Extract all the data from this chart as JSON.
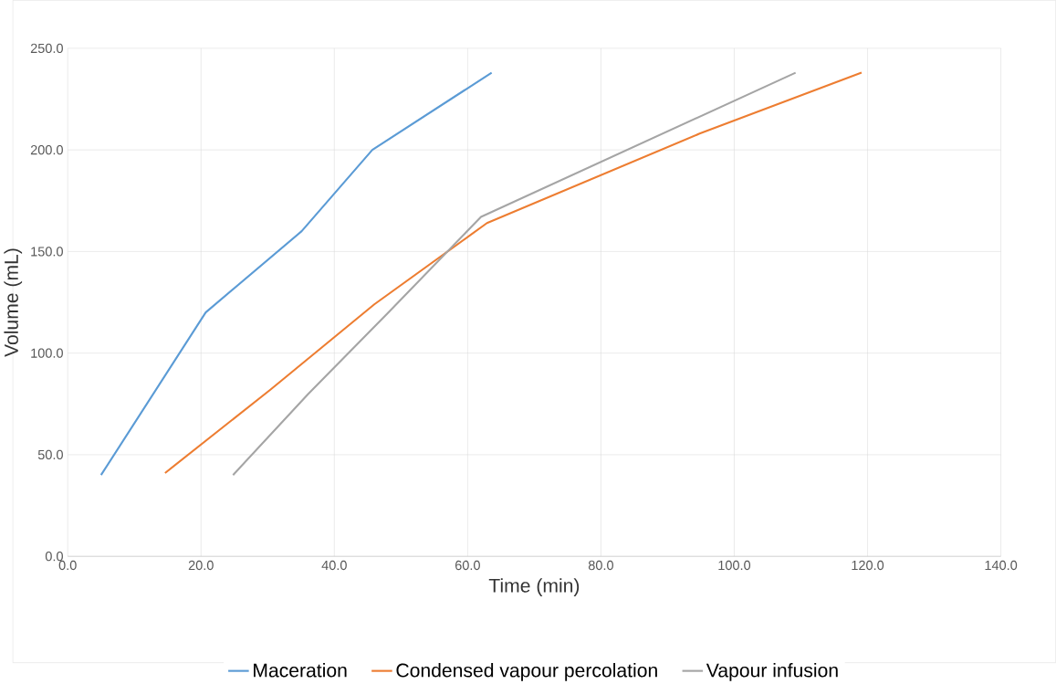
{
  "chart_data": {
    "type": "line",
    "xlabel": "Time (min)",
    "ylabel": "Volume (mL)",
    "xlim": [
      0,
      140
    ],
    "ylim": [
      0,
      250
    ],
    "xticks": [
      {
        "value": 0,
        "label": "0.0"
      },
      {
        "value": 20,
        "label": "20.0"
      },
      {
        "value": 40,
        "label": "40.0"
      },
      {
        "value": 60,
        "label": "60.0"
      },
      {
        "value": 80,
        "label": "80.0"
      },
      {
        "value": 100,
        "label": "100.0"
      },
      {
        "value": 120,
        "label": "120.0"
      },
      {
        "value": 140,
        "label": "140.0"
      }
    ],
    "yticks": [
      {
        "value": 0,
        "label": "0.0"
      },
      {
        "value": 50,
        "label": "50.0"
      },
      {
        "value": 100,
        "label": "100.0"
      },
      {
        "value": 150,
        "label": "150.0"
      },
      {
        "value": 200,
        "label": "200.0"
      },
      {
        "value": 250,
        "label": "250.0"
      }
    ],
    "grid": true,
    "legend": "bottom",
    "marker": "none",
    "line_style": "solid",
    "series": [
      {
        "name": "Maceration",
        "color": "#5b9bd5",
        "x": [
          5.0,
          20.7,
          35.1,
          45.7,
          63.6
        ],
        "values": [
          40,
          120,
          160,
          200,
          238
        ]
      },
      {
        "name": "Condensed vapour percolation",
        "color": "#ed7d31",
        "x": [
          14.6,
          30.4,
          46.0,
          62.9,
          94.8,
          119.1
        ],
        "values": [
          41,
          82,
          124,
          164,
          208,
          238
        ]
      },
      {
        "name": "Vapour infusion",
        "color": "#a5a5a5",
        "x": [
          24.8,
          36.1,
          48.1,
          62.0,
          109.2
        ],
        "values": [
          40,
          80,
          120,
          167,
          238
        ]
      }
    ]
  }
}
